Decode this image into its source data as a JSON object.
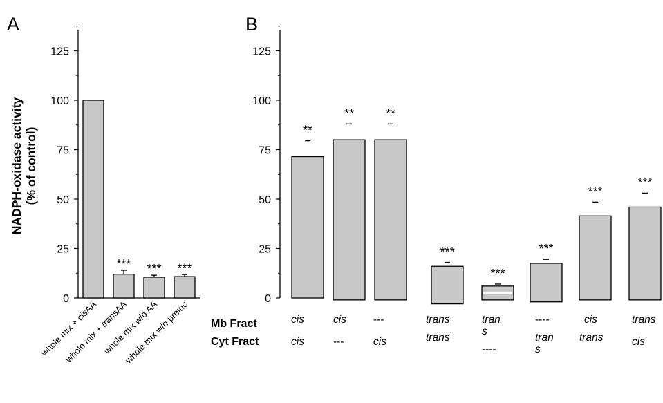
{
  "chart_data": [
    {
      "panel_label": "A",
      "type": "bar",
      "ylabel_line1": "NADPH-oxidase activity",
      "ylabel_line2": "(% of control)",
      "ylim": [
        0,
        140
      ],
      "yticks": [
        0,
        25,
        50,
        75,
        100,
        125
      ],
      "categories": [
        {
          "pre": "whole mix + ",
          "it": "cis",
          "post": "AA"
        },
        {
          "pre": "whole mix + ",
          "it": "trans",
          "post": "AA"
        },
        {
          "pre": "whole mix w/o AA",
          "it": "",
          "post": ""
        },
        {
          "pre": "whole mix w/o preinc",
          "it": "",
          "post": ""
        }
      ],
      "values": [
        100,
        12,
        10.5,
        10.8
      ],
      "errors": [
        0,
        2,
        1,
        1
      ],
      "annotations": [
        "",
        "***",
        "***",
        "***"
      ]
    },
    {
      "panel_label": "B",
      "type": "bar",
      "ylim": [
        0,
        140
      ],
      "yticks": [
        0,
        25,
        50,
        75,
        100,
        125
      ],
      "row_labels": [
        "Mb Fract",
        "Cyt Fract"
      ],
      "mb_fract": [
        [
          "cis"
        ],
        [
          "cis"
        ],
        [
          "---"
        ],
        [
          "trans"
        ],
        [
          "tran",
          "s"
        ],
        [
          "----"
        ],
        [
          "cis"
        ],
        [
          "trans"
        ]
      ],
      "cyt_fract": [
        [
          "cis"
        ],
        [
          "---"
        ],
        [
          "cis"
        ],
        [
          "trans"
        ],
        [
          "----"
        ],
        [
          "tran",
          "s"
        ],
        [
          "trans"
        ],
        [
          "cis"
        ]
      ],
      "values": [
        71.5,
        80,
        80,
        16,
        6,
        17.5,
        41.5,
        46
      ],
      "bar_base": [
        0,
        -1,
        -1,
        -3,
        -1,
        -2,
        -1,
        -1
      ],
      "errors": [
        8,
        8,
        8,
        2,
        1,
        2,
        7,
        7
      ],
      "annotations": [
        "**",
        "**",
        "**",
        "***",
        "***",
        "***",
        "***",
        "***"
      ]
    }
  ]
}
